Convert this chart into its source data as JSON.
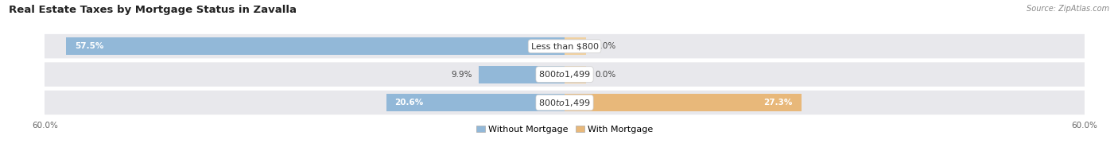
{
  "title": "Real Estate Taxes by Mortgage Status in Zavalla",
  "source": "Source: ZipAtlas.com",
  "rows": [
    {
      "label": "Less than $800",
      "without": 57.5,
      "with": 0.0
    },
    {
      "label": "$800 to $1,499",
      "without": 9.9,
      "with": 0.0
    },
    {
      "label": "$800 to $1,499",
      "without": 20.6,
      "with": 27.3
    }
  ],
  "x_max": 60.0,
  "color_without": "#92b8d8",
  "color_with": "#e8b87a",
  "color_without_light": "#b8d3e8",
  "color_with_light": "#f0d0a0",
  "bar_height": 0.62,
  "background_row": "#e8e8ec",
  "label_fontsize": 8.0,
  "title_fontsize": 9.5,
  "legend_fontsize": 8.0,
  "axis_fontsize": 7.5,
  "pct_fontsize": 7.5
}
